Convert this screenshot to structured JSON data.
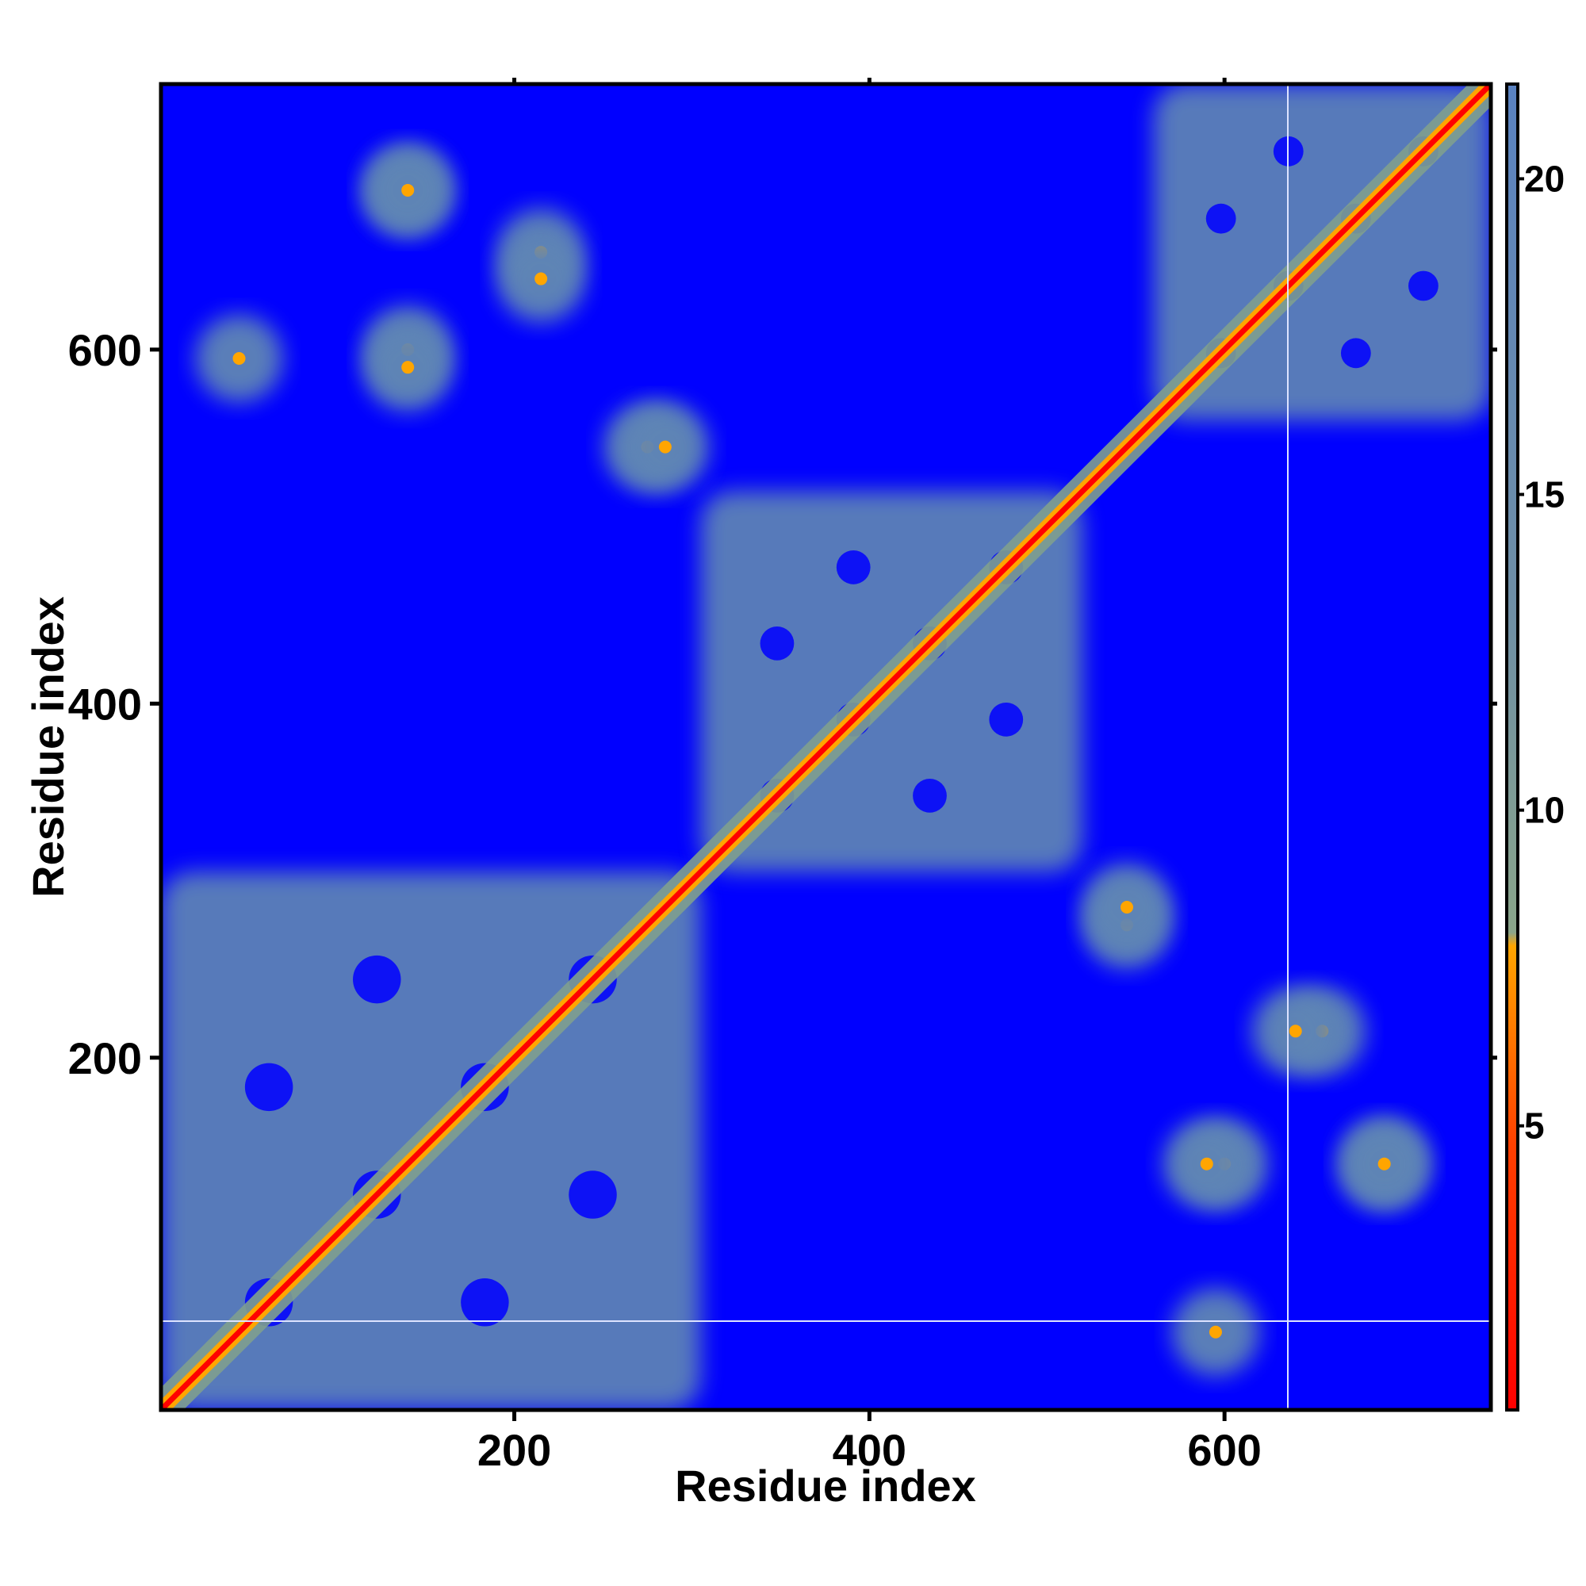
{
  "chart_data": {
    "type": "heatmap",
    "title": "",
    "xlabel": "Residue index",
    "ylabel": "Residue index",
    "xlim": [
      1,
      750
    ],
    "ylim": [
      1,
      750
    ],
    "x_ticks": [
      200,
      400,
      600
    ],
    "y_ticks": [
      200,
      400,
      600
    ],
    "colorbar": {
      "ticks": [
        5,
        10,
        15,
        20
      ],
      "range": [
        0.5,
        21.5
      ],
      "colors": [
        "#ff0000",
        "#ff6a00",
        "#ffa500",
        "#7f9f8f",
        "#5f85b5",
        "#0000ff"
      ]
    },
    "background_color": "#0000ff",
    "diagonal_color": "#ff0000",
    "domains": [
      {
        "start": 1,
        "end": 305
      },
      {
        "start": 305,
        "end": 520
      },
      {
        "start": 560,
        "end": 750
      }
    ],
    "off_diagonal_contacts": [
      {
        "x": 140,
        "y": 690
      },
      {
        "x": 140,
        "y": 600
      },
      {
        "x": 215,
        "y": 655
      },
      {
        "x": 275,
        "y": 545
      },
      {
        "x": 545,
        "y": 285
      },
      {
        "x": 590,
        "y": 140
      },
      {
        "x": 690,
        "y": 140
      },
      {
        "x": 640,
        "y": 215
      },
      {
        "x": 45,
        "y": 595
      }
    ]
  }
}
